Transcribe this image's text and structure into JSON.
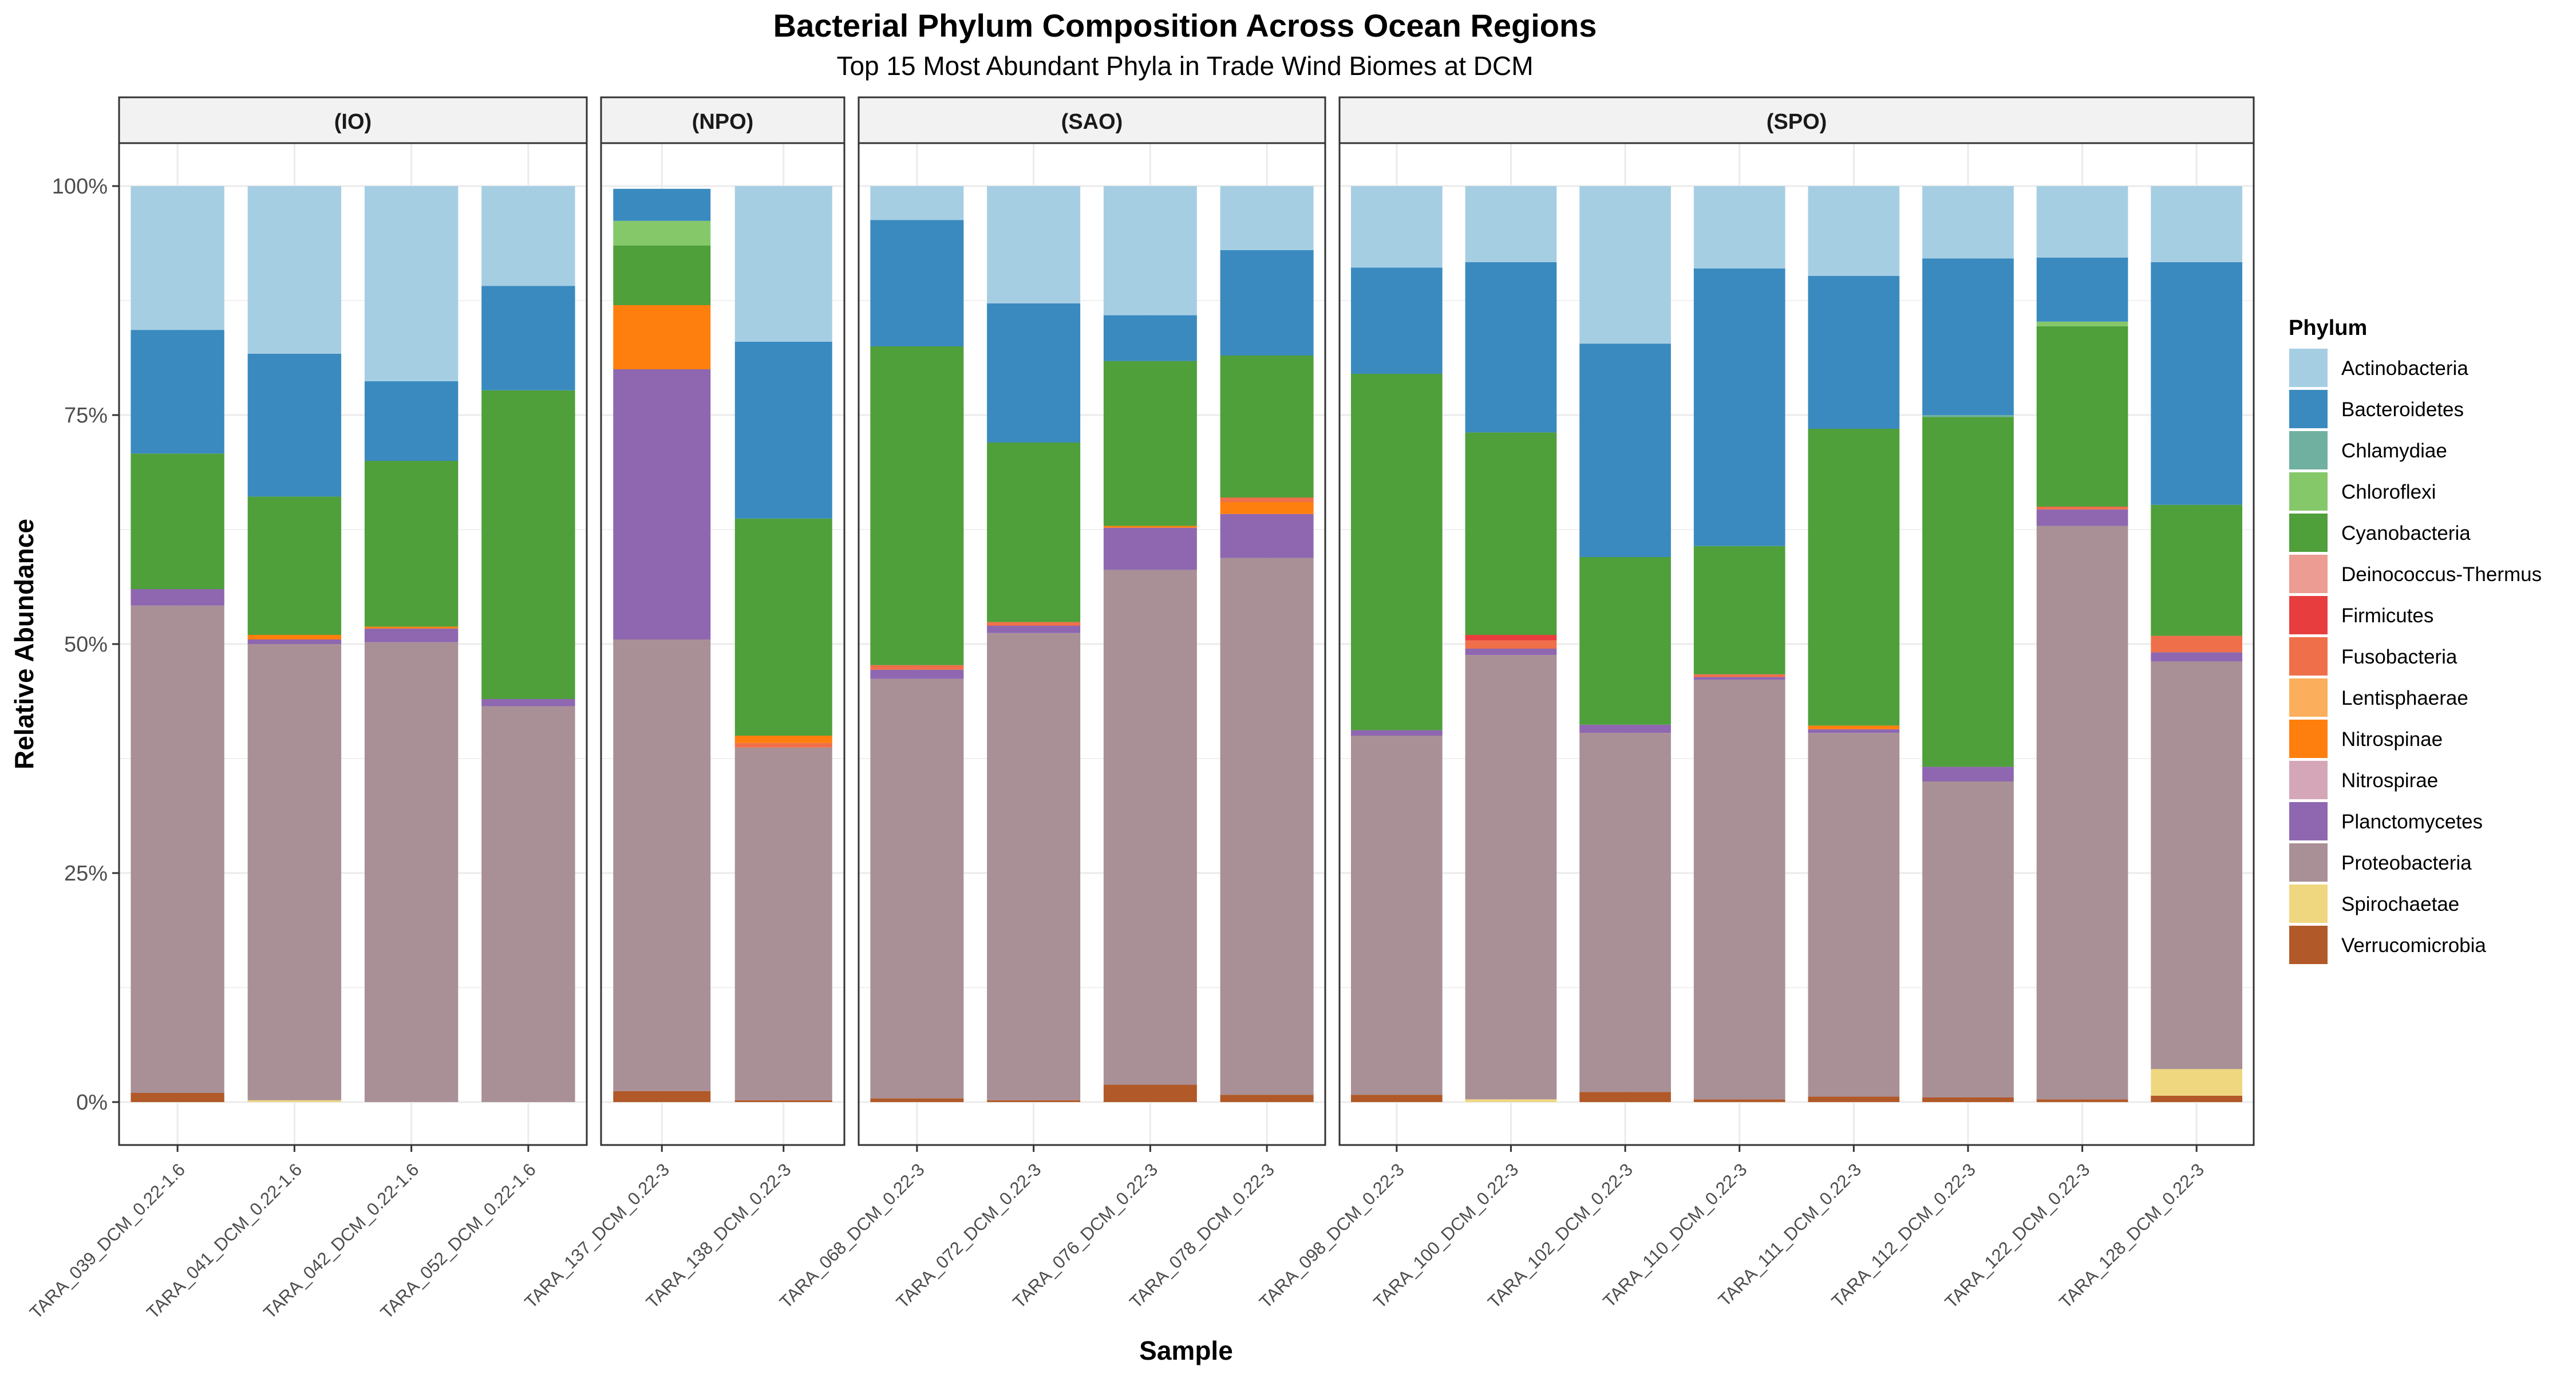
{
  "chart_data": {
    "type": "bar",
    "stacked": true,
    "title": "Bacterial Phylum Composition Across Ocean Regions",
    "subtitle": "Top 15 Most Abundant Phyla in Trade Wind Biomes at DCM",
    "xlabel": "Sample",
    "ylabel": "Relative Abundance",
    "ylim": [
      0,
      1
    ],
    "yticks": [
      "0%",
      "25%",
      "50%",
      "75%",
      "100%"
    ],
    "grid": true,
    "legend": {
      "title": "Phylum",
      "position": "right",
      "entries": [
        {
          "name": "Actinobacteria",
          "color": "#A6CEE3"
        },
        {
          "name": "Bacteroidetes",
          "color": "#3A8ABF"
        },
        {
          "name": "Chlamydiae",
          "color": "#70B0A0"
        },
        {
          "name": "Chloroflexi",
          "color": "#84C86A"
        },
        {
          "name": "Cyanobacteria",
          "color": "#4F9F3B"
        },
        {
          "name": "Deinococcus-Thermus",
          "color": "#EC9C93"
        },
        {
          "name": "Firmicutes",
          "color": "#E83D3E"
        },
        {
          "name": "Fusobacteria",
          "color": "#EF6F4A"
        },
        {
          "name": "Lentisphaerae",
          "color": "#FBAF5D"
        },
        {
          "name": "Nitrospinae",
          "color": "#FF7F0E"
        },
        {
          "name": "Nitrospirae",
          "color": "#D4A6B8"
        },
        {
          "name": "Planctomycetes",
          "color": "#8E67B0"
        },
        {
          "name": "Proteobacteria",
          "color": "#A99096"
        },
        {
          "name": "Spirochaetae",
          "color": "#EFD780"
        },
        {
          "name": "Verrucomicrobia",
          "color": "#B15928"
        }
      ]
    },
    "panels": [
      {
        "label": "(IO)",
        "samples": [
          {
            "name": "TARA_039_DCM_0.22-1.6",
            "stack": [
              [
                "Verrucomicrobia",
                0.01
              ],
              [
                "Proteobacteria",
                0.532
              ],
              [
                "Planctomycetes",
                0.018
              ],
              [
                "Cyanobacteria",
                0.148
              ],
              [
                "Bacteroidetes",
                0.135
              ],
              [
                "Actinobacteria",
                0.157
              ]
            ]
          },
          {
            "name": "TARA_041_DCM_0.22-1.6",
            "stack": [
              [
                "Spirochaetae",
                0.002
              ],
              [
                "Proteobacteria",
                0.498
              ],
              [
                "Planctomycetes",
                0.005
              ],
              [
                "Nitrospinae",
                0.005
              ],
              [
                "Cyanobacteria",
                0.151
              ],
              [
                "Bacteroidetes",
                0.156
              ],
              [
                "Actinobacteria",
                0.183
              ]
            ]
          },
          {
            "name": "TARA_042_DCM_0.22-1.6",
            "stack": [
              [
                "Proteobacteria",
                0.502
              ],
              [
                "Planctomycetes",
                0.015
              ],
              [
                "Nitrospinae",
                0.002
              ],
              [
                "Cyanobacteria",
                0.181
              ],
              [
                "Bacteroidetes",
                0.087
              ],
              [
                "Actinobacteria",
                0.213
              ]
            ]
          },
          {
            "name": "TARA_052_DCM_0.22-1.6",
            "stack": [
              [
                "Proteobacteria",
                0.432
              ],
              [
                "Planctomycetes",
                0.008
              ],
              [
                "Cyanobacteria",
                0.337
              ],
              [
                "Bacteroidetes",
                0.114
              ],
              [
                "Actinobacteria",
                0.109
              ]
            ]
          }
        ]
      },
      {
        "label": "(NPO)",
        "samples": [
          {
            "name": "TARA_137_DCM_0.22-3",
            "stack": [
              [
                "Verrucomicrobia",
                0.012
              ],
              [
                "Proteobacteria",
                0.493
              ],
              [
                "Planctomycetes",
                0.295
              ],
              [
                "Nitrospinae",
                0.07
              ],
              [
                "Cyanobacteria",
                0.065
              ],
              [
                "Chloroflexi",
                0.027
              ],
              [
                "Bacteroidetes",
                0.035
              ]
            ]
          },
          {
            "name": "TARA_138_DCM_0.22-3",
            "stack": [
              [
                "Verrucomicrobia",
                0.002
              ],
              [
                "Proteobacteria",
                0.385
              ],
              [
                "Fusobacteria",
                0.005
              ],
              [
                "Nitrospinae",
                0.008
              ],
              [
                "Cyanobacteria",
                0.237
              ],
              [
                "Bacteroidetes",
                0.193
              ],
              [
                "Actinobacteria",
                0.17
              ]
            ]
          }
        ]
      },
      {
        "label": "(SAO)",
        "samples": [
          {
            "name": "TARA_068_DCM_0.22-3",
            "stack": [
              [
                "Verrucomicrobia",
                0.004
              ],
              [
                "Proteobacteria",
                0.458
              ],
              [
                "Planctomycetes",
                0.01
              ],
              [
                "Fusobacteria",
                0.005
              ],
              [
                "Cyanobacteria",
                0.348
              ],
              [
                "Bacteroidetes",
                0.138
              ],
              [
                "Actinobacteria",
                0.037
              ]
            ]
          },
          {
            "name": "TARA_072_DCM_0.22-3",
            "stack": [
              [
                "Verrucomicrobia",
                0.002
              ],
              [
                "Proteobacteria",
                0.51
              ],
              [
                "Planctomycetes",
                0.008
              ],
              [
                "Fusobacteria",
                0.004
              ],
              [
                "Cyanobacteria",
                0.196
              ],
              [
                "Bacteroidetes",
                0.152
              ],
              [
                "Actinobacteria",
                0.128
              ]
            ]
          },
          {
            "name": "TARA_076_DCM_0.22-3",
            "stack": [
              [
                "Verrucomicrobia",
                0.019
              ],
              [
                "Proteobacteria",
                0.562
              ],
              [
                "Planctomycetes",
                0.046
              ],
              [
                "Nitrospinae",
                0.002
              ],
              [
                "Cyanobacteria",
                0.18
              ],
              [
                "Bacteroidetes",
                0.05
              ],
              [
                "Actinobacteria",
                0.141
              ]
            ]
          },
          {
            "name": "TARA_078_DCM_0.22-3",
            "stack": [
              [
                "Verrucomicrobia",
                0.008
              ],
              [
                "Proteobacteria",
                0.586
              ],
              [
                "Planctomycetes",
                0.048
              ],
              [
                "Nitrospinae",
                0.013
              ],
              [
                "Fusobacteria",
                0.005
              ],
              [
                "Cyanobacteria",
                0.155
              ],
              [
                "Bacteroidetes",
                0.115
              ],
              [
                "Actinobacteria",
                0.07
              ]
            ]
          }
        ]
      },
      {
        "label": "(SPO)",
        "samples": [
          {
            "name": "TARA_098_DCM_0.22-3",
            "stack": [
              [
                "Verrucomicrobia",
                0.008
              ],
              [
                "Proteobacteria",
                0.392
              ],
              [
                "Planctomycetes",
                0.006
              ],
              [
                "Cyanobacteria",
                0.389
              ],
              [
                "Bacteroidetes",
                0.116
              ],
              [
                "Actinobacteria",
                0.089
              ]
            ]
          },
          {
            "name": "TARA_100_DCM_0.22-3",
            "stack": [
              [
                "Spirochaetae",
                0.003
              ],
              [
                "Proteobacteria",
                0.485
              ],
              [
                "Planctomycetes",
                0.007
              ],
              [
                "Fusobacteria",
                0.009
              ],
              [
                "Firmicutes",
                0.006
              ],
              [
                "Cyanobacteria",
                0.221
              ],
              [
                "Bacteroidetes",
                0.186
              ],
              [
                "Actinobacteria",
                0.083
              ]
            ]
          },
          {
            "name": "TARA_102_DCM_0.22-3",
            "stack": [
              [
                "Verrucomicrobia",
                0.011
              ],
              [
                "Proteobacteria",
                0.392
              ],
              [
                "Planctomycetes",
                0.009
              ],
              [
                "Cyanobacteria",
                0.183
              ],
              [
                "Bacteroidetes",
                0.233
              ],
              [
                "Actinobacteria",
                0.172
              ]
            ]
          },
          {
            "name": "TARA_110_DCM_0.22-3",
            "stack": [
              [
                "Verrucomicrobia",
                0.003
              ],
              [
                "Proteobacteria",
                0.458
              ],
              [
                "Planctomycetes",
                0.003
              ],
              [
                "Fusobacteria",
                0.003
              ],
              [
                "Cyanobacteria",
                0.14
              ],
              [
                "Bacteroidetes",
                0.303
              ],
              [
                "Actinobacteria",
                0.09
              ]
            ]
          },
          {
            "name": "TARA_111_DCM_0.22-3",
            "stack": [
              [
                "Verrucomicrobia",
                0.006
              ],
              [
                "Proteobacteria",
                0.397
              ],
              [
                "Planctomycetes",
                0.004
              ],
              [
                "Nitrospinae",
                0.004
              ],
              [
                "Cyanobacteria",
                0.324
              ],
              [
                "Bacteroidetes",
                0.167
              ],
              [
                "Actinobacteria",
                0.098
              ]
            ]
          },
          {
            "name": "TARA_112_DCM_0.22-3",
            "stack": [
              [
                "Verrucomicrobia",
                0.005
              ],
              [
                "Proteobacteria",
                0.345
              ],
              [
                "Planctomycetes",
                0.016
              ],
              [
                "Cyanobacteria",
                0.382
              ],
              [
                "Chlamydiae",
                0.002
              ],
              [
                "Bacteroidetes",
                0.171
              ],
              [
                "Actinobacteria",
                0.079
              ]
            ]
          },
          {
            "name": "TARA_122_DCM_0.22-3",
            "stack": [
              [
                "Verrucomicrobia",
                0.003
              ],
              [
                "Proteobacteria",
                0.626
              ],
              [
                "Planctomycetes",
                0.018
              ],
              [
                "Fusobacteria",
                0.003
              ],
              [
                "Cyanobacteria",
                0.197
              ],
              [
                "Chloroflexi",
                0.005
              ],
              [
                "Bacteroidetes",
                0.07
              ],
              [
                "Actinobacteria",
                0.078
              ]
            ]
          },
          {
            "name": "TARA_128_DCM_0.22-3",
            "stack": [
              [
                "Verrucomicrobia",
                0.007
              ],
              [
                "Spirochaetae",
                0.029
              ],
              [
                "Proteobacteria",
                0.445
              ],
              [
                "Planctomycetes",
                0.01
              ],
              [
                "Fusobacteria",
                0.018
              ],
              [
                "Cyanobacteria",
                0.143
              ],
              [
                "Bacteroidetes",
                0.265
              ],
              [
                "Actinobacteria",
                0.083
              ]
            ]
          }
        ]
      }
    ]
  }
}
